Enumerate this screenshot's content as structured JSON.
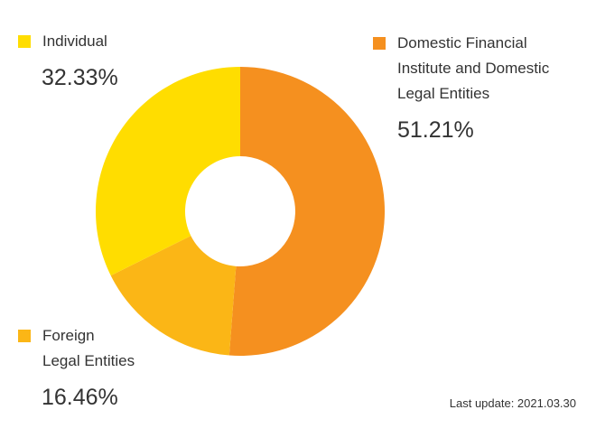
{
  "chart_data": {
    "type": "pie",
    "variant": "donut",
    "title": "",
    "slices": [
      {
        "label": "Domestic Financial\nInstitute and Domestic\nLegal Entities",
        "value": 51.21,
        "display": "51.21%",
        "color": "#F5901F"
      },
      {
        "label": "Foreign\nLegal Entities",
        "value": 16.46,
        "display": "16.46%",
        "color": "#FBB616"
      },
      {
        "label": "Individual",
        "value": 32.33,
        "display": "32.33%",
        "color": "#FFDD00"
      }
    ],
    "legend_placement": "around"
  },
  "footer": {
    "last_update": "Last update: 2021.03.30"
  }
}
